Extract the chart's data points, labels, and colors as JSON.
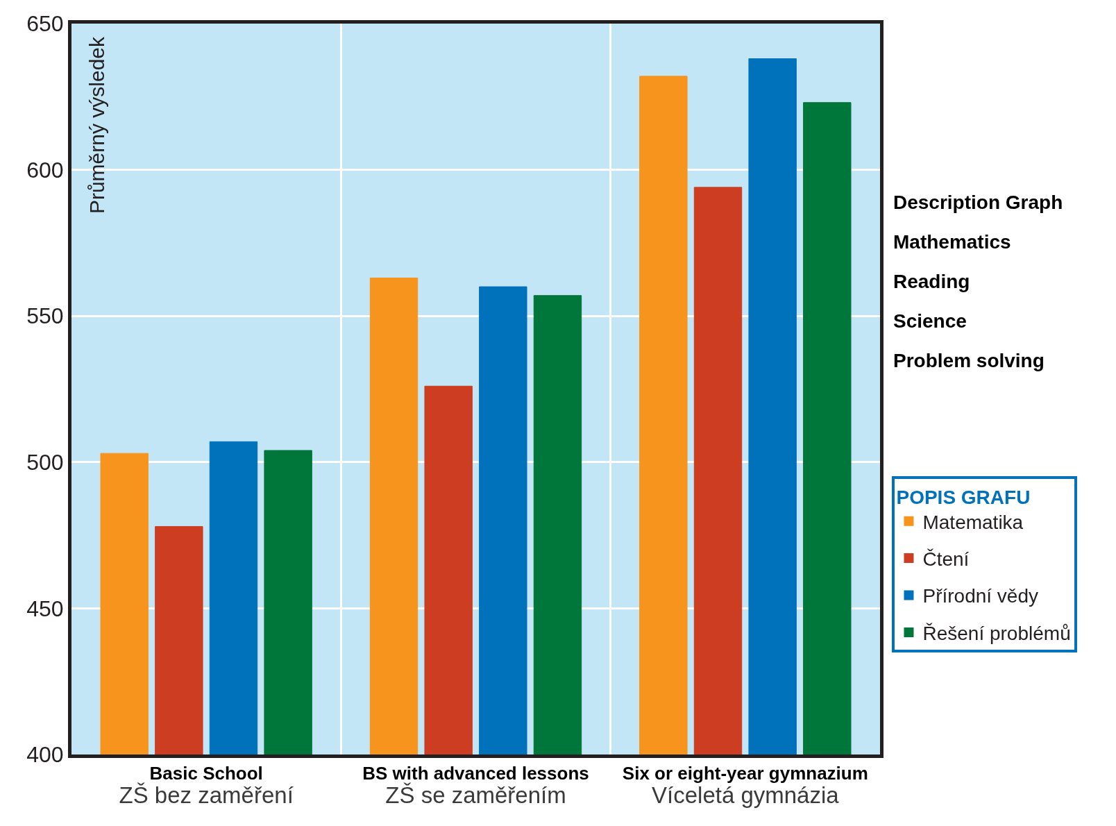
{
  "chart_data": {
    "type": "bar",
    "ylabel": "Průměrný výsledek",
    "legend_title": "POPIS GRAFU",
    "categories": [
      "Basic School\nZŠ bez zaměření",
      "BS with advanced lessons\nZŠ se zaměřením",
      "Six or eight-year gymnazium\nVíceletá gymnázia"
    ],
    "series": [
      {
        "name": "Matematika",
        "color": "#f7941d",
        "values": [
          503,
          563,
          632
        ]
      },
      {
        "name": "Čtení",
        "color": "#cc3d22",
        "values": [
          478,
          526,
          594
        ]
      },
      {
        "name": "Přírodní vědy",
        "color": "#0072bc",
        "values": [
          507,
          560,
          638
        ]
      },
      {
        "name": "Řešení problémů",
        "color": "#00773a",
        "values": [
          504,
          557,
          623
        ]
      }
    ],
    "ylim": [
      400,
      650
    ],
    "yticks": [
      400,
      450,
      500,
      550,
      600,
      650
    ],
    "grid": true,
    "legend": "bottom right",
    "annotations": [
      "Description Graph",
      "Mathematics",
      "Reading",
      "Science",
      "Problem solving"
    ]
  }
}
